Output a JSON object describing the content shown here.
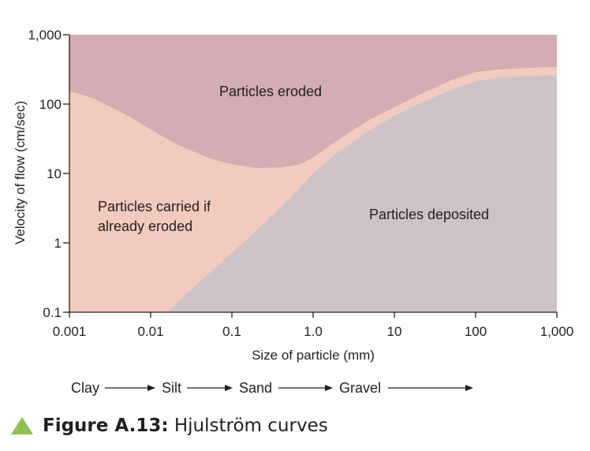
{
  "chart_data": {
    "type": "area",
    "title": "",
    "xlabel": "Size of particle (mm)",
    "ylabel": "Velocity of flow (cm/sec)",
    "xscale": "log",
    "yscale": "log",
    "xlim": [
      0.001,
      1000
    ],
    "ylim": [
      0.1,
      1000
    ],
    "x_ticks": [
      {
        "value": 0.001,
        "label": "0.001"
      },
      {
        "value": 0.01,
        "label": "0.01"
      },
      {
        "value": 0.1,
        "label": "0.1"
      },
      {
        "value": 1,
        "label": "1.0"
      },
      {
        "value": 10,
        "label": "10"
      },
      {
        "value": 100,
        "label": "100"
      },
      {
        "value": 1000,
        "label": "1,000"
      }
    ],
    "y_ticks": [
      {
        "value": 0.1,
        "label": "0.1"
      },
      {
        "value": 1,
        "label": "1"
      },
      {
        "value": 10,
        "label": "10"
      },
      {
        "value": 100,
        "label": "100"
      },
      {
        "value": 1000,
        "label": "1,000"
      }
    ],
    "curves": {
      "erosion": {
        "x": [
          0.001,
          0.002,
          0.005,
          0.01,
          0.02,
          0.05,
          0.1,
          0.2,
          0.4,
          0.7,
          1,
          2,
          5,
          10,
          20,
          50,
          100,
          200,
          500,
          1000
        ],
        "y": [
          155,
          120,
          70,
          43,
          27,
          17,
          13.5,
          12,
          12.2,
          13.5,
          17,
          30,
          60,
          90,
          135,
          220,
          290,
          315,
          335,
          345
        ]
      },
      "deposition": {
        "x": [
          0.016,
          0.03,
          0.06,
          0.1,
          0.2,
          0.5,
          1,
          2,
          5,
          10,
          20,
          50,
          100,
          200,
          500,
          1000
        ],
        "y": [
          0.1,
          0.2,
          0.42,
          0.72,
          1.5,
          4.2,
          10,
          20,
          42,
          68,
          100,
          160,
          215,
          240,
          255,
          260
        ]
      }
    },
    "regions": [
      {
        "name": "Particles eroded",
        "color": "#d4acb3"
      },
      {
        "name": "Particles carried if already eroded",
        "color": "#f3cabe"
      },
      {
        "name": "Particles deposited",
        "color": "#cdc3c6"
      }
    ],
    "annotations": {
      "eroded": "Particles eroded",
      "carried_line1": "Particles carried if",
      "carried_line2": "already eroded",
      "deposited": "Particles deposited"
    },
    "size_classes": [
      "Clay",
      "Silt",
      "Sand",
      "Gravel"
    ]
  },
  "caption": {
    "bold": "Figure A.13:",
    "text": " Hjulström curves",
    "icon": "triangle-icon",
    "icon_color": "#8cc152"
  }
}
